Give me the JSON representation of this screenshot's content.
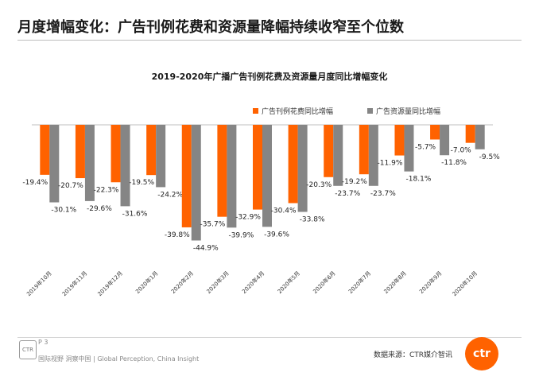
{
  "page": {
    "title": "月度增幅变化：广告刊例花费和资源量降幅持续收窄至个位数",
    "page_number": "P 3",
    "footer_text": "国际视野  洞察中国 | Global Perception, China Insight",
    "badge_text": "CTR",
    "source": "数据来源：CTR媒介智讯",
    "logo_text": "ctr"
  },
  "colors": {
    "spend": "#ff6200",
    "resource": "#858585"
  },
  "chart_data": {
    "type": "bar",
    "title": "2019-2020年广播广告刊例花费及资源量月度同比增幅变化",
    "xlabel": "",
    "ylabel": "",
    "ylim": [
      -50,
      0
    ],
    "grid": false,
    "legend_position": "top-right",
    "categories": [
      "2019年10月",
      "2019年11月",
      "2019年12月",
      "2020年1月",
      "2020年2月",
      "2020年3月",
      "2020年4月",
      "2020年5月",
      "2020年6月",
      "2020年7月",
      "2020年8月",
      "2020年9月",
      "2020年10月"
    ],
    "series": [
      {
        "name": "广告刊例花费同比增幅",
        "values": [
          -19.4,
          -20.7,
          -22.3,
          -19.5,
          -39.8,
          -35.7,
          -32.9,
          -30.4,
          -20.3,
          -19.2,
          -11.9,
          -5.7,
          -7.0
        ],
        "labels": [
          "-19.4%",
          "-20.7%",
          "-22.3%",
          "-19.5%",
          "-39.8%",
          "-35.7%",
          "-32.9%",
          "-30.4%",
          "-20.3%",
          "-19.2%",
          "-11.9%",
          "-5.7%",
          "-7.0%"
        ]
      },
      {
        "name": "广告资源量同比增幅",
        "values": [
          -30.1,
          -29.6,
          -31.6,
          -24.2,
          -44.9,
          -39.9,
          -39.6,
          -33.8,
          -23.7,
          -23.7,
          -18.1,
          -11.8,
          -9.5
        ],
        "labels": [
          "-30.1%",
          "-29.6%",
          "-31.6%",
          "-24.2%",
          "-44.9%",
          "-39.9%",
          "-39.6%",
          "-33.8%",
          "-23.7%",
          "-23.7%",
          "-18.1%",
          "-11.8%",
          "-9.5%"
        ]
      }
    ]
  }
}
